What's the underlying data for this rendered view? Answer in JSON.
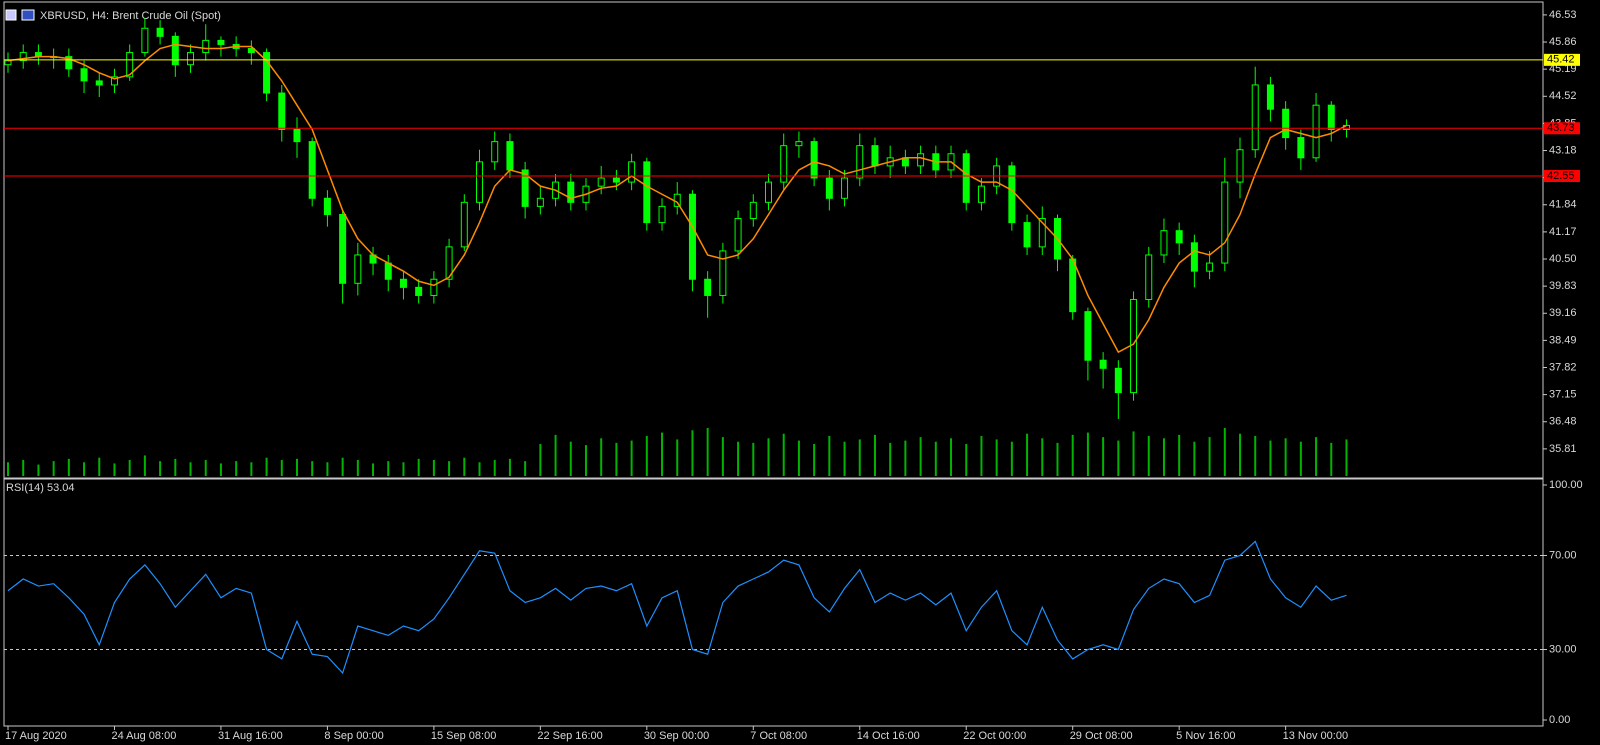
{
  "chart_data": [
    {
      "type": "candlestick",
      "title": "XBRUSD, H4:  Brent Crude Oil (Spot)",
      "categories": [
        "17 Aug 2020",
        null,
        null,
        null,
        null,
        null,
        null,
        "24 Aug 08:00",
        null,
        null,
        null,
        null,
        null,
        null,
        "31 Aug 16:00",
        null,
        null,
        null,
        null,
        null,
        null,
        "8 Sep 00:00",
        null,
        null,
        null,
        null,
        null,
        null,
        "15 Sep 08:00",
        null,
        null,
        null,
        null,
        null,
        null,
        "22 Sep 16:00",
        null,
        null,
        null,
        null,
        null,
        null,
        "30 Sep 00:00",
        null,
        null,
        null,
        null,
        null,
        null,
        "7 Oct 08:00",
        null,
        null,
        null,
        null,
        null,
        null,
        "14 Oct 16:00",
        null,
        null,
        null,
        null,
        null,
        null,
        "22 Oct 00:00",
        null,
        null,
        null,
        null,
        null,
        null,
        "29 Oct 08:00",
        null,
        null,
        null,
        null,
        null,
        null,
        "5 Nov 16:00",
        null,
        null,
        null,
        null,
        null,
        null,
        "13 Nov 00:00",
        null,
        null,
        null,
        null
      ],
      "open": [
        45.3,
        45.4,
        45.6,
        45.5,
        45.5,
        45.2,
        44.9,
        44.8,
        45.0,
        45.6,
        46.2,
        46.0,
        45.3,
        45.6,
        45.9,
        45.8,
        45.7,
        45.6,
        44.6,
        43.7,
        43.4,
        42.0,
        41.6,
        39.9,
        40.6,
        40.4,
        40.0,
        39.8,
        39.6,
        40.0,
        40.8,
        41.9,
        42.9,
        43.4,
        42.7,
        41.8,
        42.0,
        42.4,
        41.9,
        42.3,
        42.5,
        42.4,
        42.9,
        41.4,
        41.8,
        42.1,
        40.0,
        39.6,
        40.7,
        41.5,
        41.9,
        42.4,
        43.3,
        43.4,
        42.5,
        42.0,
        42.5,
        43.3,
        42.8,
        43.0,
        42.8,
        43.1,
        42.7,
        43.1,
        41.9,
        42.3,
        42.8,
        41.4,
        40.8,
        41.5,
        40.5,
        39.2,
        38.0,
        37.8,
        37.2,
        39.5,
        40.6,
        41.2,
        40.9,
        40.2,
        40.4,
        42.4,
        43.2,
        44.8,
        44.2,
        43.5,
        43.0,
        44.3,
        43.7
      ],
      "high": [
        45.6,
        45.8,
        45.8,
        45.7,
        45.7,
        45.4,
        45.1,
        45.2,
        45.8,
        46.45,
        46.4,
        46.1,
        45.8,
        46.3,
        46.0,
        46.0,
        45.9,
        45.7,
        44.8,
        44.0,
        43.5,
        42.2,
        41.7,
        40.9,
        40.8,
        40.6,
        40.2,
        40.0,
        40.2,
        41.0,
        42.1,
        43.2,
        43.65,
        43.6,
        42.9,
        42.3,
        42.6,
        42.6,
        42.5,
        42.8,
        42.7,
        43.1,
        43.0,
        42.0,
        42.4,
        42.2,
        40.2,
        40.9,
        41.7,
        42.1,
        42.6,
        43.6,
        43.65,
        43.5,
        42.7,
        42.7,
        43.6,
        43.5,
        43.3,
        43.2,
        43.3,
        43.3,
        43.3,
        43.2,
        42.5,
        43.0,
        42.9,
        41.6,
        41.8,
        41.6,
        40.6,
        39.3,
        38.2,
        38.0,
        39.7,
        40.8,
        41.5,
        41.4,
        41.1,
        40.7,
        43.0,
        43.5,
        45.25,
        45.0,
        44.4,
        43.7,
        44.6,
        44.4,
        43.95
      ],
      "low": [
        45.1,
        45.2,
        45.3,
        45.2,
        45.0,
        44.6,
        44.5,
        44.6,
        44.9,
        45.5,
        45.8,
        45.0,
        45.1,
        45.4,
        45.5,
        45.5,
        45.3,
        44.4,
        43.4,
        43.0,
        41.8,
        41.3,
        39.4,
        39.6,
        40.1,
        39.7,
        39.5,
        39.4,
        39.4,
        39.8,
        40.7,
        41.7,
        42.7,
        42.5,
        41.5,
        41.6,
        41.8,
        41.7,
        41.7,
        42.1,
        42.2,
        42.2,
        41.2,
        41.2,
        41.6,
        39.7,
        39.05,
        39.4,
        40.5,
        41.3,
        41.7,
        42.2,
        43.0,
        42.3,
        41.7,
        41.8,
        42.3,
        42.6,
        42.5,
        42.6,
        42.6,
        42.5,
        42.5,
        41.7,
        41.7,
        42.1,
        41.2,
        40.6,
        40.6,
        40.2,
        39.0,
        37.5,
        37.3,
        36.55,
        37.0,
        39.3,
        40.4,
        40.6,
        39.8,
        40.0,
        40.2,
        42.0,
        43.0,
        43.9,
        43.2,
        42.7,
        42.9,
        43.4,
        43.5
      ],
      "close": [
        45.4,
        45.6,
        45.5,
        45.5,
        45.2,
        44.9,
        44.8,
        45.0,
        45.6,
        46.2,
        46.0,
        45.3,
        45.6,
        45.9,
        45.8,
        45.7,
        45.6,
        44.6,
        43.7,
        43.4,
        42.0,
        41.6,
        39.9,
        40.6,
        40.4,
        40.0,
        39.8,
        39.6,
        40.0,
        40.8,
        41.9,
        42.9,
        43.4,
        42.7,
        41.8,
        42.0,
        42.4,
        41.9,
        42.3,
        42.5,
        42.4,
        42.9,
        41.4,
        41.8,
        42.1,
        40.0,
        39.6,
        40.7,
        41.5,
        41.9,
        42.4,
        43.3,
        43.4,
        42.5,
        42.0,
        42.5,
        43.3,
        42.8,
        43.0,
        42.8,
        43.1,
        42.7,
        43.1,
        41.9,
        42.3,
        42.8,
        41.4,
        40.8,
        41.5,
        40.5,
        39.2,
        38.0,
        37.8,
        37.2,
        39.5,
        40.6,
        41.2,
        40.9,
        40.2,
        40.4,
        42.4,
        43.2,
        44.8,
        44.2,
        43.5,
        43.0,
        44.3,
        43.7,
        43.8
      ],
      "ma_values": [
        45.4,
        45.45,
        45.5,
        45.5,
        45.45,
        45.3,
        45.1,
        44.95,
        45.05,
        45.4,
        45.7,
        45.8,
        45.75,
        45.7,
        45.7,
        45.75,
        45.75,
        45.4,
        44.9,
        44.3,
        43.7,
        42.7,
        41.7,
        41.0,
        40.6,
        40.4,
        40.2,
        39.95,
        39.85,
        40.05,
        40.6,
        41.4,
        42.3,
        42.7,
        42.6,
        42.3,
        42.2,
        42.0,
        42.1,
        42.25,
        42.3,
        42.55,
        42.3,
        42.1,
        41.9,
        41.3,
        40.6,
        40.5,
        40.6,
        41.0,
        41.6,
        42.2,
        42.7,
        42.9,
        42.8,
        42.6,
        42.7,
        42.8,
        42.9,
        43.0,
        43.0,
        42.9,
        42.9,
        42.6,
        42.4,
        42.4,
        42.2,
        41.8,
        41.4,
        41.0,
        40.5,
        39.6,
        38.9,
        38.2,
        38.4,
        39.0,
        39.8,
        40.4,
        40.7,
        40.6,
        40.9,
        41.6,
        42.6,
        43.5,
        43.7,
        43.6,
        43.5,
        43.6,
        43.8
      ],
      "ma_color": "#ff8c00",
      "volume": [
        12,
        14,
        10,
        13,
        15,
        12,
        16,
        11,
        14,
        18,
        13,
        15,
        12,
        14,
        11,
        13,
        12,
        16,
        14,
        15,
        13,
        12,
        16,
        14,
        11,
        13,
        12,
        15,
        14,
        13,
        16,
        12,
        14,
        15,
        13,
        28,
        36,
        30,
        27,
        33,
        29,
        31,
        35,
        38,
        32,
        40,
        42,
        34,
        30,
        29,
        33,
        37,
        31,
        28,
        35,
        30,
        32,
        36,
        29,
        31,
        34,
        30,
        33,
        28,
        35,
        32,
        30,
        37,
        33,
        29,
        36,
        38,
        34,
        31,
        39,
        35,
        33,
        36,
        30,
        34,
        42,
        37,
        35,
        31,
        33,
        30,
        34,
        29,
        32
      ],
      "color": "#00ff00",
      "volume_color": "#00b400",
      "levels": [
        {
          "value": 45.42,
          "color": "#ffff00"
        },
        {
          "value": 43.73,
          "color": "#ff0000"
        },
        {
          "value": 42.55,
          "color": "#ff0000"
        }
      ],
      "ylim": [
        35.14,
        46.75
      ],
      "yticks": [
        46.53,
        45.86,
        45.19,
        44.52,
        43.85,
        43.18,
        42.51,
        41.84,
        41.17,
        {
          "value": 40.5,
          "label": "40.50"
        },
        39.83,
        39.16,
        38.49,
        37.82,
        37.15,
        36.48,
        35.81
      ]
    },
    {
      "type": "line",
      "title": "RSI(14) 53.04",
      "color": "#1e90ff",
      "values": [
        55,
        60,
        57,
        58,
        52,
        45,
        32,
        50,
        60,
        66,
        58,
        48,
        55,
        62,
        52,
        56,
        54,
        30,
        26,
        42,
        28,
        27,
        20,
        40,
        38,
        36,
        40,
        38,
        43,
        52,
        62,
        72,
        71,
        55,
        50,
        52,
        56,
        51,
        56,
        57,
        55,
        58,
        40,
        52,
        55,
        30,
        28,
        50,
        57,
        60,
        63,
        68,
        66,
        52,
        46,
        56,
        64,
        50,
        54,
        51,
        54,
        49,
        54,
        38,
        48,
        55,
        38,
        32,
        48,
        34,
        26,
        30,
        32,
        30,
        47,
        56,
        60,
        58,
        50,
        53,
        68,
        70,
        76,
        60,
        52,
        48,
        57,
        51,
        53.04
      ],
      "levels": [
        30,
        70
      ],
      "ylim": [
        0,
        100
      ],
      "yticks": [
        {
          "value": 100,
          "label": "100.00"
        },
        {
          "value": 70,
          "label": "70.00"
        },
        {
          "value": 30,
          "label": "30.00"
        },
        {
          "value": 0,
          "label": "0.00"
        }
      ]
    }
  ]
}
